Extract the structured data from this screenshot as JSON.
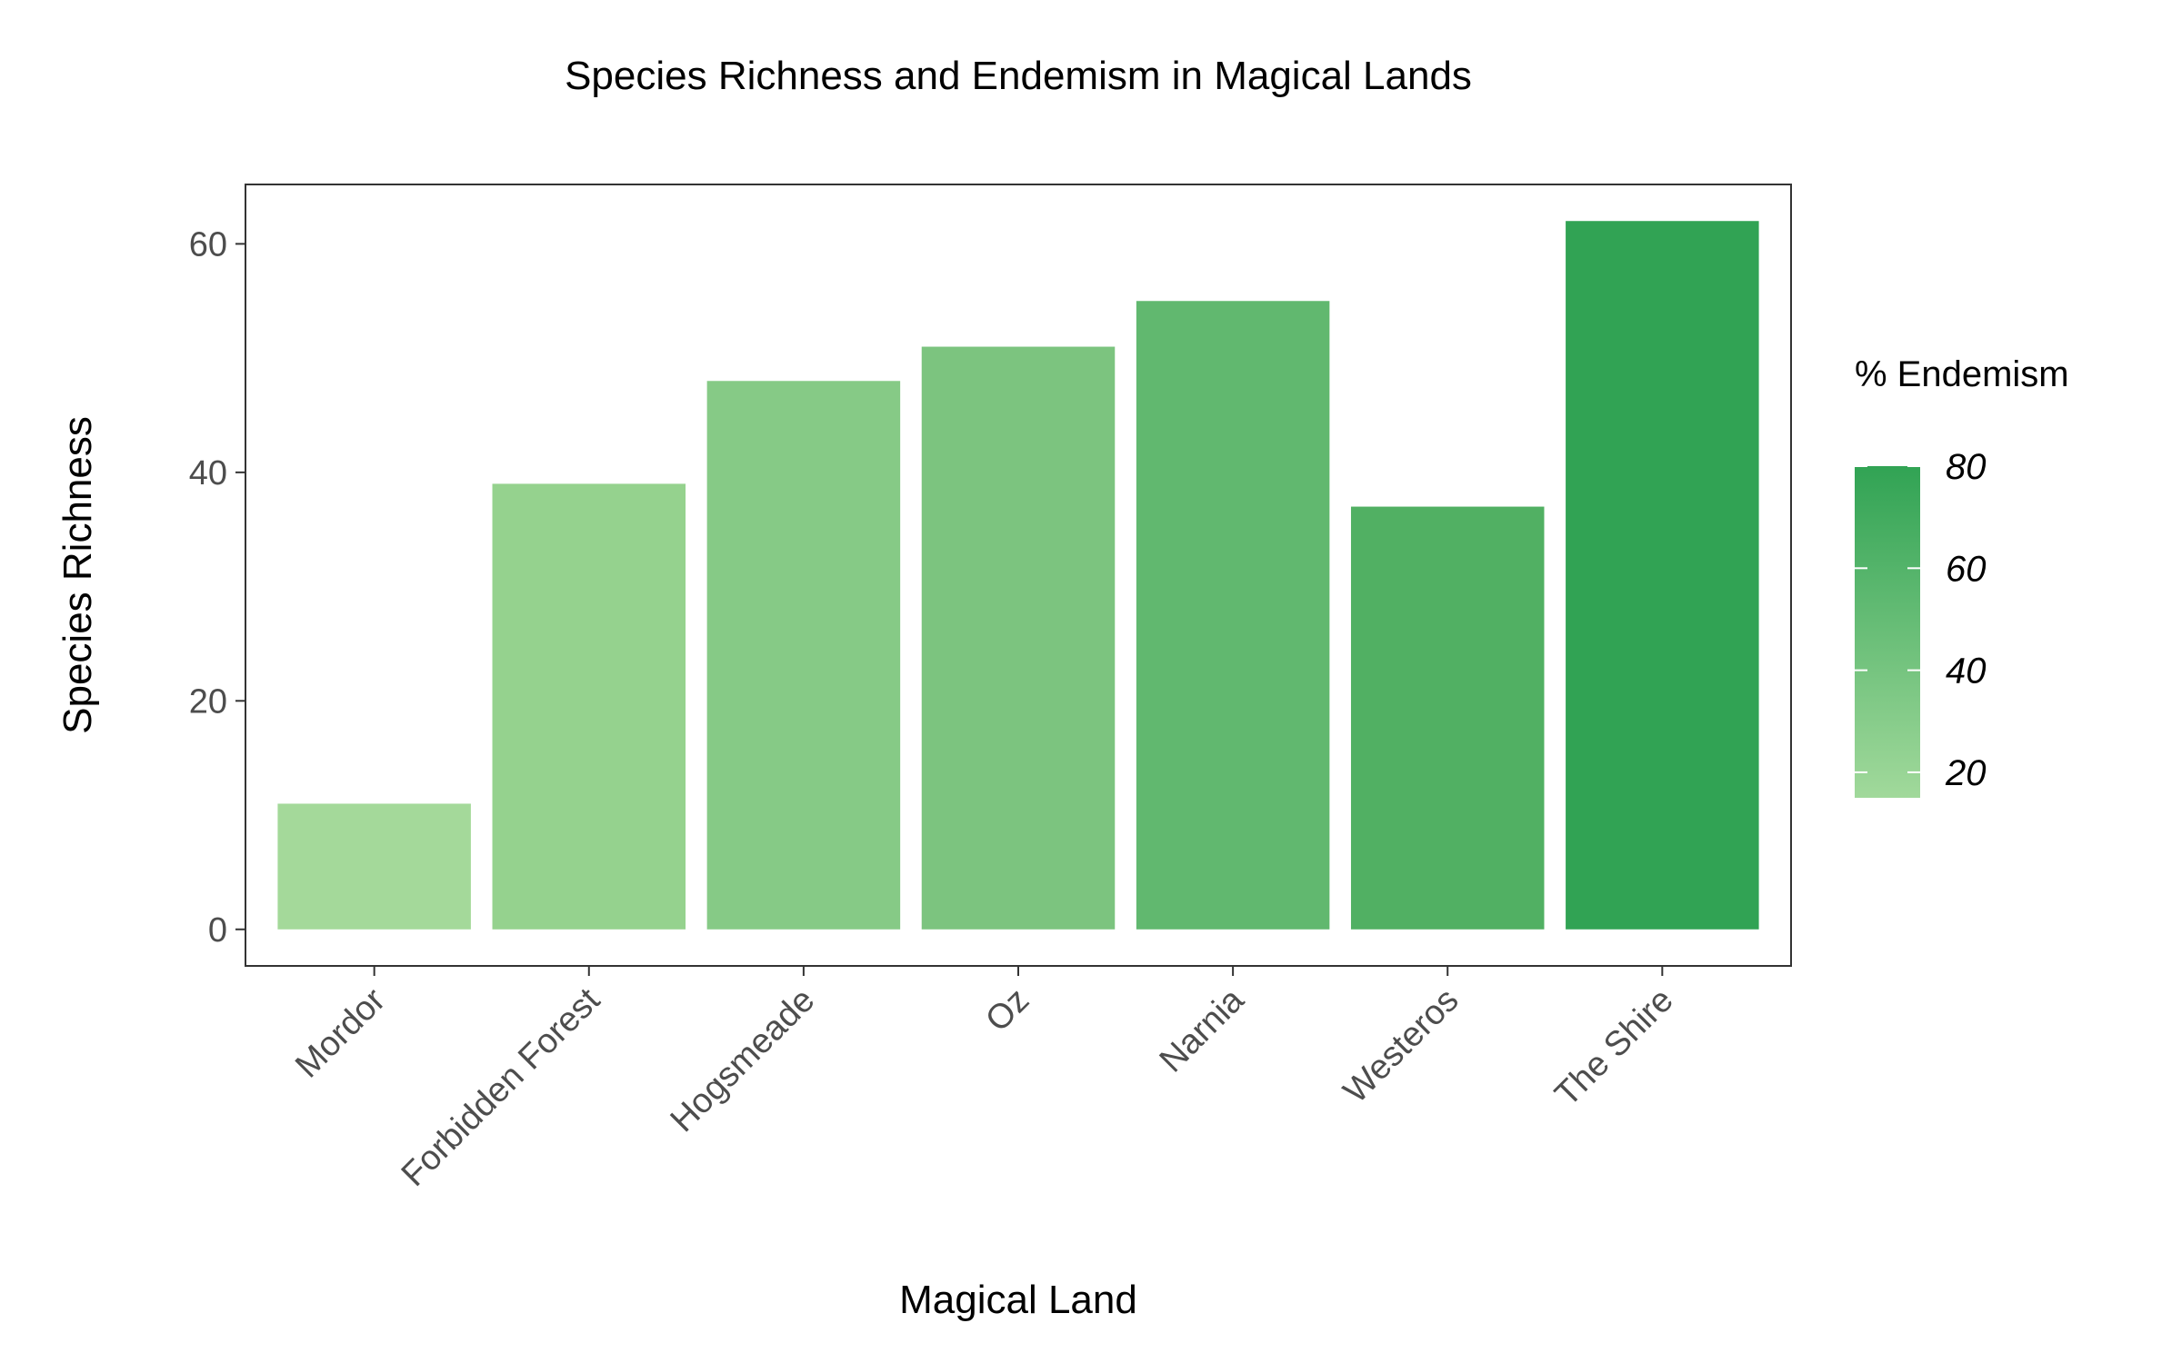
{
  "chart_data": {
    "type": "bar",
    "title": "Species Richness and Endemism in Magical Lands",
    "xlabel": "Magical Land",
    "ylabel": "Species Richness",
    "categories": [
      "Mordor",
      "Forbidden Forest",
      "Hogsmeade",
      "Oz",
      "Narnia",
      "Westeros",
      "The Shire"
    ],
    "values": [
      11,
      39,
      48,
      51,
      55,
      37,
      62
    ],
    "endemism_percent": [
      15,
      30,
      40,
      45,
      55,
      65,
      78
    ],
    "bar_colors": [
      "#a4d99a",
      "#95d28e",
      "#86ca86",
      "#7cc47f",
      "#61b86f",
      "#51b063",
      "#31a354"
    ],
    "yticks": [
      0,
      20,
      40,
      60
    ],
    "ylim": [
      -3.2,
      65.2
    ],
    "grid": false,
    "legend": {
      "title": "% Endemism",
      "position": "right",
      "ticks": [
        20,
        40,
        60,
        80
      ],
      "range": [
        15,
        80
      ],
      "low_color": "#a1d99b",
      "high_color": "#31a354"
    }
  }
}
